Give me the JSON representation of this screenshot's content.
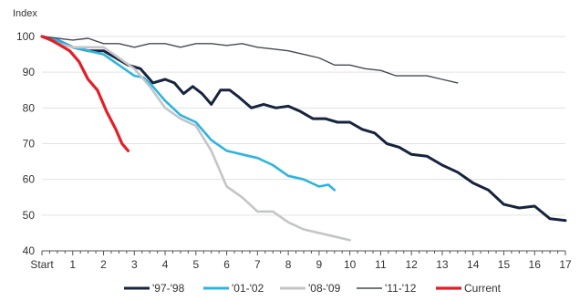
{
  "chart_data": {
    "type": "line",
    "title": "",
    "ylabel": "Index",
    "xlabel": "",
    "xlim": [
      0,
      17
    ],
    "ylim": [
      40,
      100
    ],
    "yticks": [
      40,
      50,
      60,
      70,
      80,
      90,
      100
    ],
    "xticks": [
      {
        "value": 0,
        "label": "Start"
      },
      {
        "value": 1,
        "label": "1"
      },
      {
        "value": 2,
        "label": "2"
      },
      {
        "value": 3,
        "label": "3"
      },
      {
        "value": 4,
        "label": "4"
      },
      {
        "value": 5,
        "label": "5"
      },
      {
        "value": 6,
        "label": "6"
      },
      {
        "value": 7,
        "label": "7"
      },
      {
        "value": 8,
        "label": "8"
      },
      {
        "value": 9,
        "label": "9"
      },
      {
        "value": 10,
        "label": "10"
      },
      {
        "value": 11,
        "label": "11"
      },
      {
        "value": 12,
        "label": "12"
      },
      {
        "value": 13,
        "label": "13"
      },
      {
        "value": 14,
        "label": "14"
      },
      {
        "value": 15,
        "label": "15"
      },
      {
        "value": 16,
        "label": "16"
      },
      {
        "value": 17,
        "label": "17"
      }
    ],
    "grid": "horizontal",
    "legend_position": "bottom",
    "series": [
      {
        "name": "'97-'98",
        "color": "#17243f",
        "points": [
          [
            0,
            100
          ],
          [
            0.5,
            99
          ],
          [
            1,
            97
          ],
          [
            1.5,
            96
          ],
          [
            2,
            96
          ],
          [
            2.4,
            94
          ],
          [
            2.8,
            92
          ],
          [
            3.2,
            91
          ],
          [
            3.6,
            87
          ],
          [
            4,
            88
          ],
          [
            4.3,
            87
          ],
          [
            4.6,
            84
          ],
          [
            4.9,
            86
          ],
          [
            5.2,
            84
          ],
          [
            5.5,
            81
          ],
          [
            5.8,
            85
          ],
          [
            6.1,
            85
          ],
          [
            6.4,
            83
          ],
          [
            6.8,
            80
          ],
          [
            7.2,
            81
          ],
          [
            7.6,
            80
          ],
          [
            8,
            80.5
          ],
          [
            8.4,
            79
          ],
          [
            8.8,
            77
          ],
          [
            9.2,
            77
          ],
          [
            9.6,
            76
          ],
          [
            10,
            76
          ],
          [
            10.4,
            74
          ],
          [
            10.8,
            73
          ],
          [
            11.2,
            70
          ],
          [
            11.6,
            69
          ],
          [
            12,
            67
          ],
          [
            12.5,
            66.5
          ],
          [
            13,
            64
          ],
          [
            13.5,
            62
          ],
          [
            14,
            59
          ],
          [
            14.5,
            57
          ],
          [
            15,
            53
          ],
          [
            15.5,
            52
          ],
          [
            16,
            52.5
          ],
          [
            16.5,
            49
          ],
          [
            17,
            48.5
          ]
        ]
      },
      {
        "name": "'01-'02",
        "color": "#2fb4df",
        "points": [
          [
            0,
            100
          ],
          [
            0.5,
            99
          ],
          [
            1,
            97
          ],
          [
            1.5,
            96
          ],
          [
            2,
            95
          ],
          [
            2.5,
            92
          ],
          [
            3,
            89
          ],
          [
            3.3,
            88.5
          ],
          [
            3.6,
            86
          ],
          [
            4,
            82
          ],
          [
            4.5,
            78
          ],
          [
            5,
            76
          ],
          [
            5.5,
            71
          ],
          [
            6,
            68
          ],
          [
            6.5,
            67
          ],
          [
            7,
            66
          ],
          [
            7.5,
            64
          ],
          [
            8,
            61
          ],
          [
            8.5,
            60
          ],
          [
            9,
            58
          ],
          [
            9.3,
            58.5
          ],
          [
            9.5,
            57
          ]
        ]
      },
      {
        "name": "'08-'09",
        "color": "#c4c5c8",
        "points": [
          [
            0,
            100
          ],
          [
            0.5,
            98
          ],
          [
            1,
            97
          ],
          [
            1.5,
            97
          ],
          [
            2,
            97
          ],
          [
            2.5,
            94
          ],
          [
            3,
            91
          ],
          [
            3.5,
            86
          ],
          [
            4,
            80
          ],
          [
            4.5,
            77
          ],
          [
            5,
            75
          ],
          [
            5.5,
            68
          ],
          [
            6,
            58
          ],
          [
            6.5,
            55
          ],
          [
            7,
            51
          ],
          [
            7.5,
            51
          ],
          [
            8,
            48
          ],
          [
            8.5,
            46
          ],
          [
            9,
            45
          ],
          [
            9.5,
            44
          ],
          [
            10,
            43
          ]
        ]
      },
      {
        "name": "'11-'12",
        "color": "#444a55",
        "points": [
          [
            0,
            100
          ],
          [
            1,
            99
          ],
          [
            1.5,
            99.5
          ],
          [
            2,
            98
          ],
          [
            2.5,
            98
          ],
          [
            3,
            97
          ],
          [
            3.5,
            98
          ],
          [
            4,
            98
          ],
          [
            4.5,
            97
          ],
          [
            5,
            98
          ],
          [
            5.5,
            98
          ],
          [
            6,
            97.5
          ],
          [
            6.5,
            98
          ],
          [
            7,
            97
          ],
          [
            7.5,
            96.5
          ],
          [
            8,
            96
          ],
          [
            8.5,
            95
          ],
          [
            9,
            94
          ],
          [
            9.5,
            92
          ],
          [
            10,
            92
          ],
          [
            10.5,
            91
          ],
          [
            11,
            90.5
          ],
          [
            11.5,
            89
          ],
          [
            12,
            89
          ],
          [
            12.5,
            89
          ],
          [
            13,
            88
          ],
          [
            13.5,
            87
          ]
        ]
      },
      {
        "name": "Current",
        "color": "#e41e26",
        "points": [
          [
            0,
            100
          ],
          [
            0.3,
            99
          ],
          [
            0.6,
            97.5
          ],
          [
            0.9,
            96
          ],
          [
            1.2,
            93
          ],
          [
            1.5,
            88
          ],
          [
            1.8,
            85
          ],
          [
            2.1,
            79
          ],
          [
            2.4,
            74
          ],
          [
            2.6,
            70
          ],
          [
            2.8,
            68
          ]
        ]
      }
    ]
  }
}
